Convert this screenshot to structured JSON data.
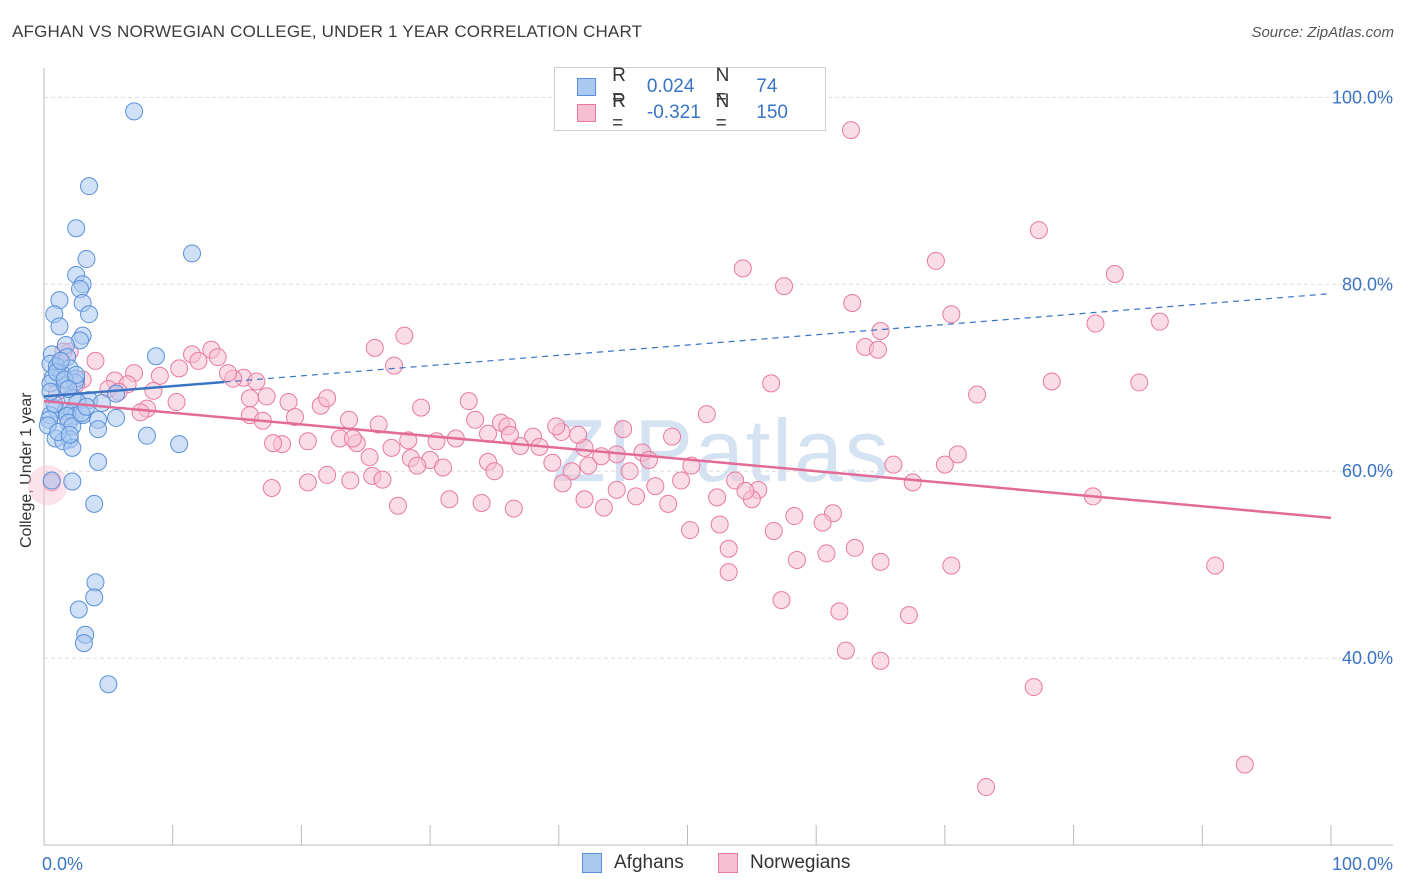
{
  "header": {
    "title": "AFGHAN VS NORWEGIAN COLLEGE, UNDER 1 YEAR CORRELATION CHART",
    "source": "Source: ZipAtlas.com"
  },
  "watermark": {
    "zip": "ZIP",
    "atlas": "atlas"
  },
  "legend": {
    "rows": [
      {
        "r_label": "R =",
        "r_value": "0.024",
        "n_label": "N =",
        "n_value": "74",
        "color": "#7eaee8"
      },
      {
        "r_label": "R =",
        "r_value": "-0.321",
        "n_label": "N =",
        "n_value": "150",
        "color": "#f08fb0"
      }
    ]
  },
  "bottom_legend": {
    "afghans": "Afghans",
    "norwegians": "Norwegians"
  },
  "colors": {
    "afghans_fill": "#aac8f0",
    "afghans_stroke": "#5a90d8",
    "norwegians_fill": "#f6bfd2",
    "norwegians_stroke": "#e87aa2",
    "blue_line": "#3a74c4",
    "pink_line": "#e26b97",
    "tick_text": "#3a74c4",
    "grid": "#dedede"
  },
  "chart_data": {
    "type": "scatter",
    "title": "AFGHAN VS NORWEGIAN COLLEGE, UNDER 1 YEAR CORRELATION CHART",
    "xlabel": "",
    "ylabel": "College, Under 1 year",
    "xlim": [
      0,
      100
    ],
    "ylim": [
      20,
      104
    ],
    "x_tick_labels": [
      "0.0%",
      "100.0%"
    ],
    "y_ticks": [
      40,
      60,
      80,
      100
    ],
    "y_tick_labels": [
      "40.0%",
      "60.0%",
      "80.0%",
      "100.0%"
    ],
    "grid": "horizontal dashed",
    "legend_placement": "top-center",
    "series": [
      {
        "name": "Afghans",
        "r": 0.024,
        "n": 74,
        "trend": {
          "x0": 0,
          "y0": 68.0,
          "x1": 100,
          "y1": 79.0,
          "solid_until_x": 14
        },
        "points": [
          [
            7.0,
            98.5
          ],
          [
            3.5,
            90.5
          ],
          [
            2.5,
            86.0
          ],
          [
            11.5,
            83.3
          ],
          [
            3.3,
            82.7
          ],
          [
            2.5,
            81.0
          ],
          [
            3.0,
            80.0
          ],
          [
            2.8,
            79.5
          ],
          [
            1.2,
            78.3
          ],
          [
            3.0,
            78.0
          ],
          [
            0.8,
            76.8
          ],
          [
            3.5,
            76.8
          ],
          [
            1.2,
            75.5
          ],
          [
            3.0,
            74.5
          ],
          [
            2.8,
            74.0
          ],
          [
            1.7,
            73.5
          ],
          [
            0.6,
            72.5
          ],
          [
            1.8,
            72.2
          ],
          [
            8.7,
            72.3
          ],
          [
            0.5,
            71.5
          ],
          [
            1.0,
            71.2
          ],
          [
            2.0,
            71.0
          ],
          [
            1.4,
            70.4
          ],
          [
            0.7,
            70.0
          ],
          [
            2.5,
            69.9
          ],
          [
            0.5,
            69.4
          ],
          [
            1.6,
            69.2
          ],
          [
            2.4,
            69.5
          ],
          [
            5.6,
            68.3
          ],
          [
            2.2,
            67.9
          ],
          [
            3.5,
            67.6
          ],
          [
            2.6,
            67.4
          ],
          [
            4.5,
            67.3
          ],
          [
            0.9,
            66.7
          ],
          [
            1.7,
            66.4
          ],
          [
            2.2,
            66.3
          ],
          [
            0.5,
            66.0
          ],
          [
            2.4,
            65.9
          ],
          [
            3.0,
            66.0
          ],
          [
            1.8,
            65.9
          ],
          [
            0.4,
            65.5
          ],
          [
            4.2,
            65.5
          ],
          [
            1.9,
            65.2
          ],
          [
            2.2,
            64.8
          ],
          [
            5.6,
            65.7
          ],
          [
            0.3,
            64.9
          ],
          [
            4.2,
            64.5
          ],
          [
            8.0,
            63.8
          ],
          [
            0.9,
            63.5
          ],
          [
            2.0,
            63.4
          ],
          [
            1.5,
            63.2
          ],
          [
            10.5,
            62.9
          ],
          [
            2.2,
            62.5
          ],
          [
            4.2,
            61.0
          ],
          [
            0.6,
            59.0
          ],
          [
            2.2,
            58.9
          ],
          [
            3.9,
            56.5
          ],
          [
            4.0,
            48.1
          ],
          [
            3.9,
            46.5
          ],
          [
            2.7,
            45.2
          ],
          [
            3.2,
            42.5
          ],
          [
            3.1,
            41.6
          ],
          [
            5.0,
            37.2
          ],
          [
            1.0,
            70.6
          ],
          [
            1.6,
            69.8
          ],
          [
            0.8,
            67.2
          ],
          [
            2.9,
            66.2
          ],
          [
            1.1,
            64.2
          ],
          [
            3.3,
            66.9
          ],
          [
            2.5,
            70.3
          ],
          [
            1.9,
            68.8
          ],
          [
            0.5,
            68.5
          ],
          [
            1.3,
            71.8
          ],
          [
            2.0,
            63.9
          ]
        ]
      },
      {
        "name": "Norwegians",
        "r": -0.321,
        "n": 150,
        "trend": {
          "x0": 0,
          "y0": 67.5,
          "x1": 100,
          "y1": 55.0
        },
        "points": [
          [
            62.7,
            96.5
          ],
          [
            77.3,
            85.8
          ],
          [
            69.3,
            82.5
          ],
          [
            54.3,
            81.7
          ],
          [
            83.2,
            81.1
          ],
          [
            57.5,
            79.8
          ],
          [
            62.8,
            78.0
          ],
          [
            70.5,
            76.8
          ],
          [
            81.7,
            75.8
          ],
          [
            86.7,
            76.0
          ],
          [
            65.0,
            75.0
          ],
          [
            28.0,
            74.5
          ],
          [
            25.7,
            73.2
          ],
          [
            63.8,
            73.3
          ],
          [
            64.8,
            73.0
          ],
          [
            13.0,
            73.0
          ],
          [
            2.0,
            72.8
          ],
          [
            11.5,
            72.5
          ],
          [
            13.5,
            72.2
          ],
          [
            12.0,
            71.8
          ],
          [
            4.0,
            71.8
          ],
          [
            27.2,
            71.3
          ],
          [
            1.2,
            71.5
          ],
          [
            10.5,
            71.0
          ],
          [
            7.0,
            70.5
          ],
          [
            15.5,
            70.0
          ],
          [
            14.7,
            69.9
          ],
          [
            3.0,
            69.8
          ],
          [
            5.5,
            69.7
          ],
          [
            6.5,
            69.3
          ],
          [
            9.0,
            70.2
          ],
          [
            16.5,
            69.6
          ],
          [
            2.5,
            69.3
          ],
          [
            56.5,
            69.4
          ],
          [
            78.3,
            69.6
          ],
          [
            85.1,
            69.5
          ],
          [
            1.0,
            68.5
          ],
          [
            5.0,
            68.8
          ],
          [
            8.5,
            68.6
          ],
          [
            17.3,
            68.0
          ],
          [
            16.0,
            67.8
          ],
          [
            72.5,
            68.2
          ],
          [
            21.5,
            67.0
          ],
          [
            19.0,
            67.4
          ],
          [
            22.0,
            67.8
          ],
          [
            33.0,
            67.5
          ],
          [
            10.3,
            67.4
          ],
          [
            8.0,
            66.7
          ],
          [
            7.5,
            66.3
          ],
          [
            29.3,
            66.8
          ],
          [
            51.5,
            66.1
          ],
          [
            16.0,
            66.0
          ],
          [
            19.5,
            65.8
          ],
          [
            23.7,
            65.5
          ],
          [
            35.5,
            65.2
          ],
          [
            33.5,
            65.5
          ],
          [
            17.0,
            65.4
          ],
          [
            26.0,
            65.0
          ],
          [
            45.0,
            64.5
          ],
          [
            36.0,
            64.8
          ],
          [
            34.5,
            64.0
          ],
          [
            40.2,
            64.2
          ],
          [
            38.0,
            63.7
          ],
          [
            23.0,
            63.5
          ],
          [
            20.5,
            63.2
          ],
          [
            28.3,
            63.3
          ],
          [
            24.3,
            63.0
          ],
          [
            18.5,
            62.9
          ],
          [
            17.8,
            63.0
          ],
          [
            27.0,
            62.5
          ],
          [
            38.5,
            62.6
          ],
          [
            37.0,
            62.7
          ],
          [
            42.0,
            62.5
          ],
          [
            46.5,
            62.0
          ],
          [
            71.0,
            61.8
          ],
          [
            44.5,
            61.8
          ],
          [
            28.5,
            61.4
          ],
          [
            30.0,
            61.2
          ],
          [
            34.5,
            61.0
          ],
          [
            39.5,
            60.9
          ],
          [
            42.3,
            60.6
          ],
          [
            25.3,
            61.5
          ],
          [
            29.0,
            60.6
          ],
          [
            31.0,
            60.4
          ],
          [
            35.0,
            60.0
          ],
          [
            45.5,
            60.0
          ],
          [
            50.3,
            60.6
          ],
          [
            43.3,
            61.6
          ],
          [
            47.0,
            61.2
          ],
          [
            66.0,
            60.7
          ],
          [
            41.0,
            60.0
          ],
          [
            22.0,
            59.6
          ],
          [
            23.8,
            59.0
          ],
          [
            20.5,
            58.8
          ],
          [
            25.5,
            59.5
          ],
          [
            49.5,
            59.0
          ],
          [
            53.7,
            59.0
          ],
          [
            67.5,
            58.8
          ],
          [
            17.7,
            58.2
          ],
          [
            44.5,
            58.0
          ],
          [
            40.3,
            58.7
          ],
          [
            47.5,
            58.4
          ],
          [
            55.5,
            58.0
          ],
          [
            46.0,
            57.3
          ],
          [
            52.3,
            57.2
          ],
          [
            42.0,
            57.0
          ],
          [
            55.0,
            57.0
          ],
          [
            31.5,
            57.0
          ],
          [
            34.0,
            56.6
          ],
          [
            27.5,
            56.3
          ],
          [
            36.5,
            56.0
          ],
          [
            48.5,
            56.5
          ],
          [
            43.5,
            56.1
          ],
          [
            61.3,
            55.5
          ],
          [
            58.3,
            55.2
          ],
          [
            60.5,
            54.5
          ],
          [
            52.5,
            54.3
          ],
          [
            56.7,
            53.6
          ],
          [
            50.2,
            53.7
          ],
          [
            63.0,
            51.8
          ],
          [
            60.8,
            51.2
          ],
          [
            53.2,
            51.7
          ],
          [
            58.5,
            50.5
          ],
          [
            65.0,
            50.3
          ],
          [
            70.5,
            49.9
          ],
          [
            91.0,
            49.9
          ],
          [
            53.2,
            49.2
          ],
          [
            57.3,
            46.2
          ],
          [
            61.8,
            45.0
          ],
          [
            67.2,
            44.6
          ],
          [
            62.3,
            40.8
          ],
          [
            65.0,
            39.7
          ],
          [
            76.9,
            36.9
          ],
          [
            93.3,
            28.6
          ],
          [
            73.2,
            26.2
          ],
          [
            54.5,
            57.9
          ],
          [
            70.0,
            60.7
          ],
          [
            48.8,
            63.7
          ],
          [
            39.8,
            64.8
          ],
          [
            41.5,
            63.9
          ],
          [
            30.5,
            63.2
          ],
          [
            26.3,
            59.1
          ],
          [
            24.0,
            63.5
          ],
          [
            14.3,
            70.5
          ],
          [
            1.5,
            72.8
          ],
          [
            36.2,
            63.9
          ],
          [
            81.5,
            57.3
          ],
          [
            0.6,
            58.8
          ],
          [
            5.8,
            68.5
          ],
          [
            32.0,
            63.5
          ]
        ]
      }
    ]
  }
}
